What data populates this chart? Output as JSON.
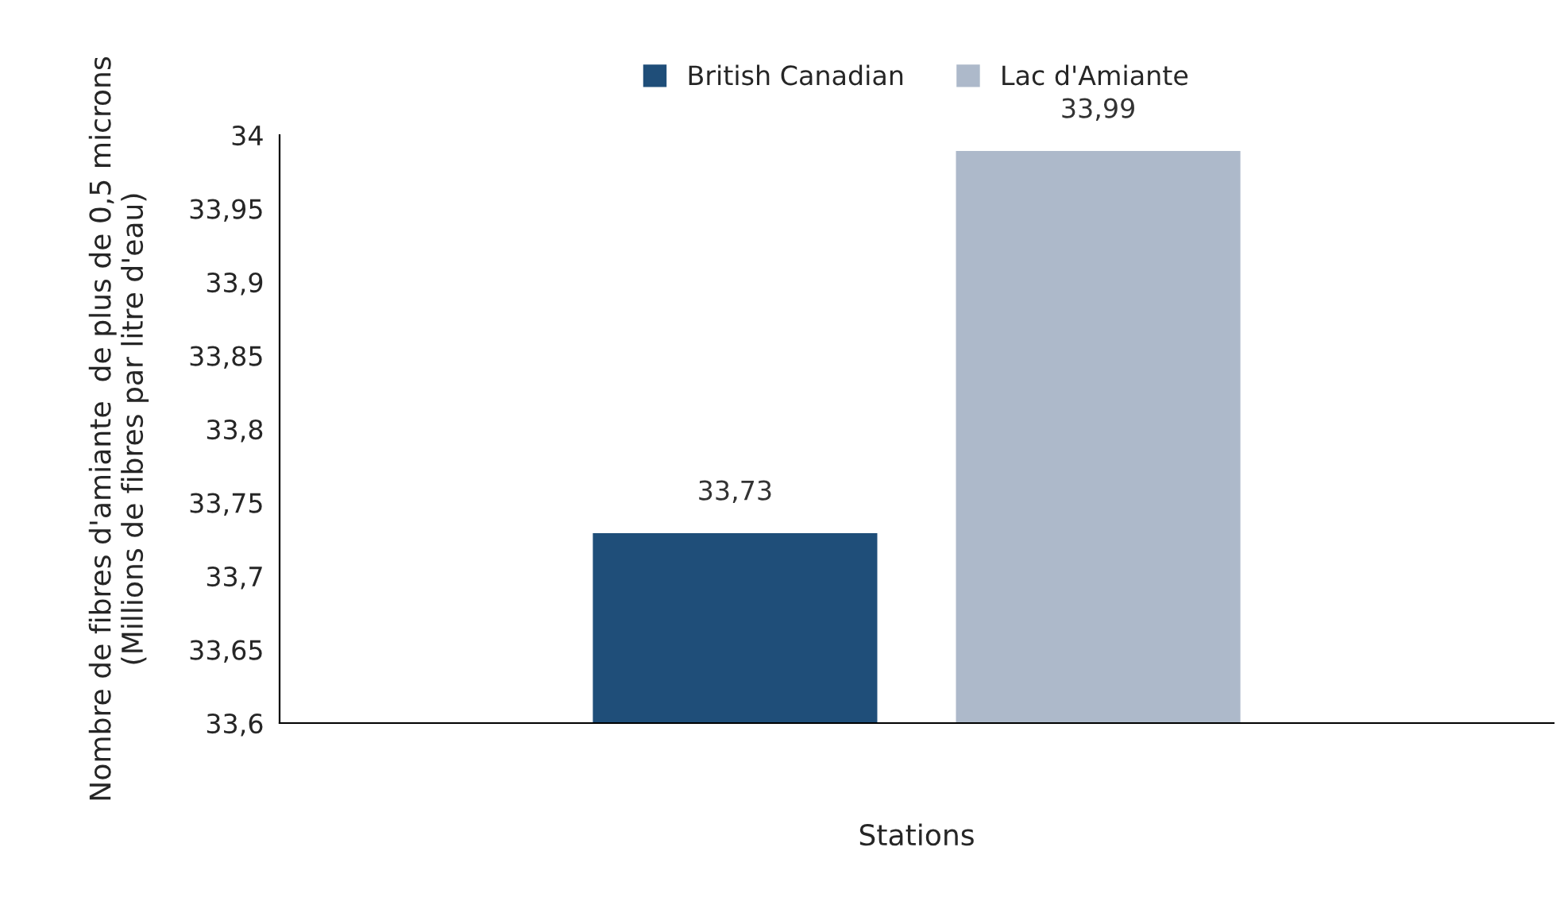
{
  "chart_data": {
    "type": "bar",
    "xlabel": "Stations",
    "ylabel": "Nombre de fibres d'amiante  de plus de 0,5 microns (Millions de fibres par litre d'eau)",
    "categories": [
      null
    ],
    "series": [
      {
        "name": "British Canadian",
        "color": "#1f4e79",
        "values": [
          33.73
        ],
        "value_labels": [
          "33,73"
        ]
      },
      {
        "name": "Lac d'Amiante",
        "color": "#adb9ca",
        "values": [
          33.99
        ],
        "value_labels": [
          "33,99"
        ]
      }
    ],
    "ylim": [
      33.6,
      34
    ],
    "yticks": [
      {
        "value": 33.6,
        "label": "33,6"
      },
      {
        "value": 33.65,
        "label": "33,65"
      },
      {
        "value": 33.7,
        "label": "33,7"
      },
      {
        "value": 33.75,
        "label": "33,75"
      },
      {
        "value": 33.8,
        "label": "33,8"
      },
      {
        "value": 33.85,
        "label": "33,85"
      },
      {
        "value": 33.9,
        "label": "33,9"
      },
      {
        "value": 33.95,
        "label": "33,95"
      },
      {
        "value": 34,
        "label": "34"
      }
    ],
    "grid": false,
    "legend": "top"
  }
}
